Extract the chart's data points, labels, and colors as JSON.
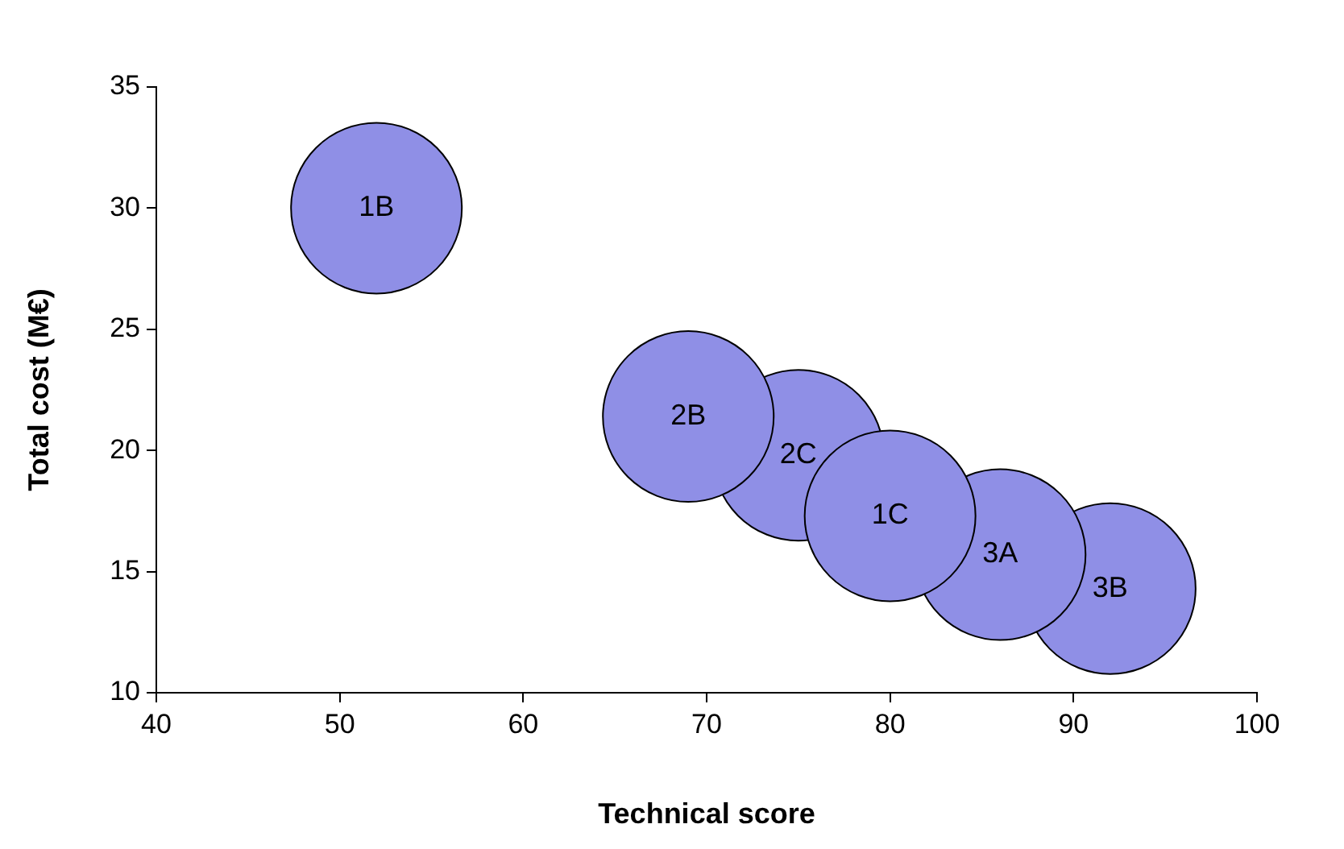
{
  "chart_data": {
    "type": "bubble",
    "xlabel": "Technical score",
    "ylabel": "Total cost (M€)",
    "xlim": [
      40,
      100
    ],
    "xticks": [
      40,
      50,
      60,
      70,
      80,
      90,
      100
    ],
    "ylim": [
      10,
      35
    ],
    "yticks": [
      10,
      15,
      20,
      25,
      30,
      35
    ],
    "grid": false,
    "legend": false,
    "series": [
      {
        "name": "1B",
        "color": "#8f8fe6",
        "x": [
          52
        ],
        "values": [
          30
        ],
        "sizes": [
          1
        ]
      },
      {
        "name": "2B",
        "color": "#8f8fe6",
        "x": [
          69
        ],
        "values": [
          21.4
        ],
        "sizes": [
          1
        ]
      },
      {
        "name": "1C",
        "color": "#8f8fe6",
        "x": [
          80
        ],
        "values": [
          17.3
        ],
        "sizes": [
          1
        ]
      },
      {
        "name": "3A",
        "color": "#8f8fe6",
        "x": [
          86
        ],
        "values": [
          15.7
        ],
        "sizes": [
          1
        ]
      },
      {
        "name": "3B",
        "color": "#8f8fe6",
        "x": [
          92
        ],
        "values": [
          14.3
        ],
        "sizes": [
          1
        ]
      },
      {
        "name": "2C",
        "color": "#8f8fe6",
        "x": [
          75
        ],
        "values": [
          19.8
        ],
        "sizes": [
          1
        ]
      }
    ]
  }
}
